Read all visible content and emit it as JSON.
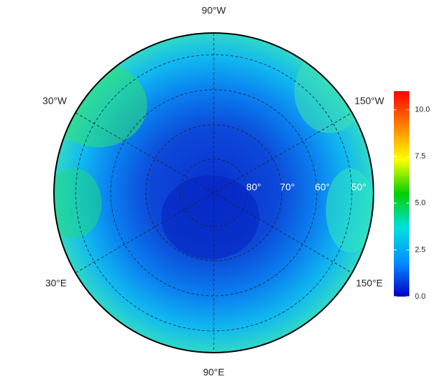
{
  "map": {
    "lon_labels": {
      "top": "90°W",
      "upper_left": "30°W",
      "upper_right": "150°W",
      "lower_left": "30°E",
      "lower_right": "150°E",
      "bottom": "90°E"
    },
    "lat_labels": [
      "80°",
      "70°",
      "60°",
      "50°"
    ],
    "colorbar": {
      "lim": [
        0,
        11
      ],
      "colors": [
        "#0000c8",
        "#0090ff",
        "#00e0e0",
        "#00d000",
        "#ffff00",
        "#ff8000",
        "#ff0000"
      ],
      "ticks": [
        {
          "value": 0,
          "label": "0.0"
        },
        {
          "value": 2.5,
          "label": "2.5"
        },
        {
          "value": 5,
          "label": "5.0"
        },
        {
          "value": 7.5,
          "label": "7.5"
        },
        {
          "value": 10,
          "label": "10.0"
        }
      ]
    }
  }
}
